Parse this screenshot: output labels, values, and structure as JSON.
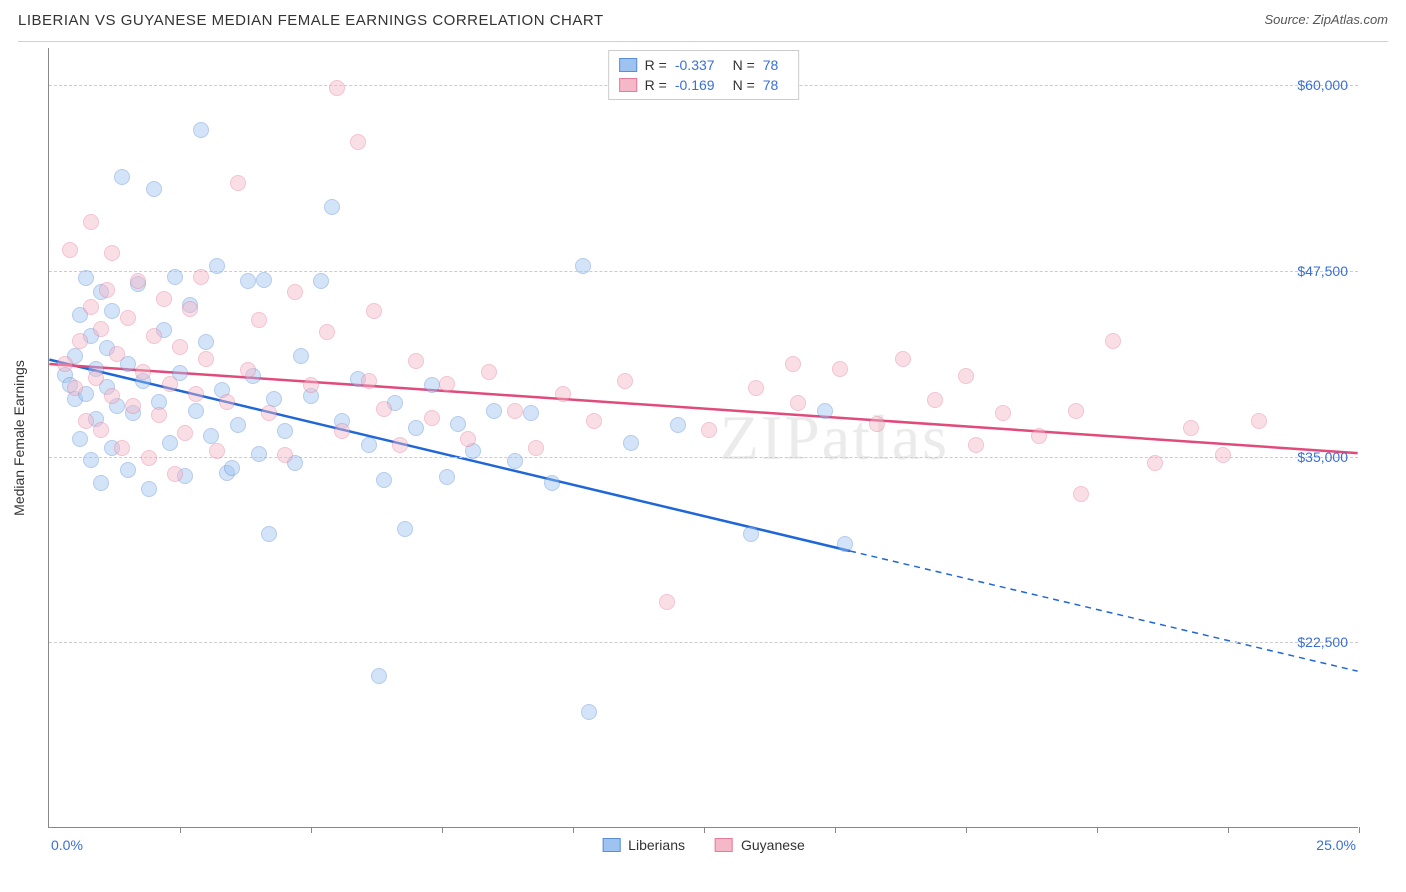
{
  "header": {
    "title": "LIBERIAN VS GUYANESE MEDIAN FEMALE EARNINGS CORRELATION CHART",
    "source": "Source: ZipAtlas.com"
  },
  "watermark": "ZIPatlas",
  "chart": {
    "type": "scatter",
    "yaxis_title": "Median Female Earnings",
    "xlim": [
      0,
      25
    ],
    "ylim": [
      10000,
      62500
    ],
    "x_min_label": "0.0%",
    "x_max_label": "25.0%",
    "xtick_positions": [
      2.5,
      5.0,
      7.5,
      10.0,
      12.5,
      15.0,
      17.5,
      20.0,
      22.5,
      25.0
    ],
    "y_gridlines": [
      22500,
      35000,
      47500,
      60000
    ],
    "y_tick_labels": [
      "$22,500",
      "$35,000",
      "$47,500",
      "$60,000"
    ],
    "background_color": "#ffffff",
    "grid_color": "#cccccc",
    "axis_color": "#888888",
    "label_color": "#3a6fd8",
    "marker_radius": 8,
    "marker_opacity": 0.45,
    "trend_line_width": 2.5,
    "series": [
      {
        "name": "Liberians",
        "fill_color": "#9ec3f0",
        "stroke_color": "#5a8ed6",
        "line_color": "#1f66d6",
        "R": "-0.337",
        "N": "78",
        "trend": {
          "x0": 0,
          "y0": 41500,
          "x_solid_end": 15.3,
          "y_solid_end": 28600,
          "x1": 25,
          "y1": 20500
        },
        "points": [
          [
            0.3,
            40500
          ],
          [
            0.4,
            39800
          ],
          [
            0.5,
            41800
          ],
          [
            0.5,
            38900
          ],
          [
            0.6,
            44500
          ],
          [
            0.6,
            36200
          ],
          [
            0.7,
            47000
          ],
          [
            0.7,
            39200
          ],
          [
            0.8,
            43100
          ],
          [
            0.8,
            34800
          ],
          [
            0.9,
            40900
          ],
          [
            0.9,
            37500
          ],
          [
            1.0,
            46100
          ],
          [
            1.0,
            33200
          ],
          [
            1.1,
            39700
          ],
          [
            1.1,
            42300
          ],
          [
            1.2,
            35600
          ],
          [
            1.2,
            44800
          ],
          [
            1.3,
            38400
          ],
          [
            1.4,
            53800
          ],
          [
            1.5,
            41200
          ],
          [
            1.5,
            34100
          ],
          [
            1.6,
            37900
          ],
          [
            1.7,
            46600
          ],
          [
            1.8,
            40100
          ],
          [
            1.9,
            32800
          ],
          [
            2.0,
            53000
          ],
          [
            2.1,
            38700
          ],
          [
            2.2,
            43500
          ],
          [
            2.3,
            35900
          ],
          [
            2.4,
            47100
          ],
          [
            2.5,
            40600
          ],
          [
            2.6,
            33700
          ],
          [
            2.7,
            45200
          ],
          [
            2.8,
            38100
          ],
          [
            2.9,
            57000
          ],
          [
            3.0,
            42700
          ],
          [
            3.1,
            36400
          ],
          [
            3.2,
            47800
          ],
          [
            3.3,
            39500
          ],
          [
            3.4,
            33900
          ],
          [
            3.5,
            34200
          ],
          [
            3.6,
            37100
          ],
          [
            3.8,
            46800
          ],
          [
            3.9,
            40400
          ],
          [
            4.0,
            35200
          ],
          [
            4.1,
            46900
          ],
          [
            4.2,
            29800
          ],
          [
            4.3,
            38900
          ],
          [
            4.5,
            36700
          ],
          [
            4.7,
            34600
          ],
          [
            4.8,
            41800
          ],
          [
            5.0,
            39100
          ],
          [
            5.2,
            46800
          ],
          [
            5.4,
            51800
          ],
          [
            5.6,
            37400
          ],
          [
            5.9,
            40200
          ],
          [
            6.1,
            35800
          ],
          [
            6.3,
            20200
          ],
          [
            6.4,
            33400
          ],
          [
            6.6,
            38600
          ],
          [
            6.8,
            30100
          ],
          [
            7.0,
            36900
          ],
          [
            7.3,
            39800
          ],
          [
            7.6,
            33600
          ],
          [
            7.8,
            37200
          ],
          [
            8.1,
            35400
          ],
          [
            8.5,
            38100
          ],
          [
            8.9,
            34700
          ],
          [
            9.2,
            37900
          ],
          [
            9.6,
            33200
          ],
          [
            10.2,
            47800
          ],
          [
            10.3,
            17800
          ],
          [
            11.1,
            35900
          ],
          [
            12.0,
            37100
          ],
          [
            13.4,
            29800
          ],
          [
            14.8,
            38100
          ],
          [
            15.2,
            29100
          ]
        ]
      },
      {
        "name": "Guyanese",
        "fill_color": "#f5b8c9",
        "stroke_color": "#e67a9a",
        "line_color": "#e04b7c",
        "R": "-0.169",
        "N": "78",
        "trend": {
          "x0": 0,
          "y0": 41200,
          "x_solid_end": 25,
          "y_solid_end": 35200,
          "x1": 25,
          "y1": 35200
        },
        "points": [
          [
            0.3,
            41200
          ],
          [
            0.4,
            48900
          ],
          [
            0.5,
            39600
          ],
          [
            0.6,
            42800
          ],
          [
            0.7,
            37400
          ],
          [
            0.8,
            45100
          ],
          [
            0.8,
            50800
          ],
          [
            0.9,
            40300
          ],
          [
            1.0,
            43600
          ],
          [
            1.0,
            36800
          ],
          [
            1.1,
            46200
          ],
          [
            1.2,
            39100
          ],
          [
            1.2,
            48700
          ],
          [
            1.3,
            41900
          ],
          [
            1.4,
            35600
          ],
          [
            1.5,
            44300
          ],
          [
            1.6,
            38400
          ],
          [
            1.7,
            46800
          ],
          [
            1.8,
            40700
          ],
          [
            1.9,
            34900
          ],
          [
            2.0,
            43100
          ],
          [
            2.1,
            37800
          ],
          [
            2.2,
            45600
          ],
          [
            2.3,
            39900
          ],
          [
            2.4,
            33800
          ],
          [
            2.5,
            42400
          ],
          [
            2.6,
            36600
          ],
          [
            2.7,
            44900
          ],
          [
            2.8,
            39200
          ],
          [
            2.9,
            47100
          ],
          [
            3.0,
            41600
          ],
          [
            3.2,
            35400
          ],
          [
            3.4,
            38700
          ],
          [
            3.6,
            53400
          ],
          [
            3.8,
            40800
          ],
          [
            4.0,
            44200
          ],
          [
            4.2,
            37900
          ],
          [
            4.5,
            35100
          ],
          [
            4.7,
            46100
          ],
          [
            5.0,
            39800
          ],
          [
            5.3,
            43400
          ],
          [
            5.5,
            59800
          ],
          [
            5.6,
            36700
          ],
          [
            5.9,
            56200
          ],
          [
            6.1,
            40100
          ],
          [
            6.2,
            44800
          ],
          [
            6.4,
            38200
          ],
          [
            6.7,
            35800
          ],
          [
            7.0,
            41400
          ],
          [
            7.3,
            37600
          ],
          [
            7.6,
            39900
          ],
          [
            8.0,
            36200
          ],
          [
            8.4,
            40700
          ],
          [
            8.9,
            38100
          ],
          [
            9.3,
            35600
          ],
          [
            9.8,
            39200
          ],
          [
            10.4,
            37400
          ],
          [
            11.0,
            40100
          ],
          [
            11.8,
            25200
          ],
          [
            12.6,
            36800
          ],
          [
            13.5,
            39600
          ],
          [
            14.2,
            41200
          ],
          [
            14.3,
            38600
          ],
          [
            15.1,
            40900
          ],
          [
            15.8,
            37200
          ],
          [
            16.3,
            41600
          ],
          [
            16.9,
            38800
          ],
          [
            17.5,
            40400
          ],
          [
            17.7,
            35800
          ],
          [
            18.2,
            37900
          ],
          [
            18.9,
            36400
          ],
          [
            19.6,
            38100
          ],
          [
            19.7,
            32500
          ],
          [
            20.3,
            42800
          ],
          [
            21.1,
            34600
          ],
          [
            21.8,
            36900
          ],
          [
            22.4,
            35100
          ],
          [
            23.1,
            37400
          ]
        ]
      }
    ],
    "stats_legend": {
      "r_prefix": "R =",
      "n_prefix": "N ="
    }
  }
}
